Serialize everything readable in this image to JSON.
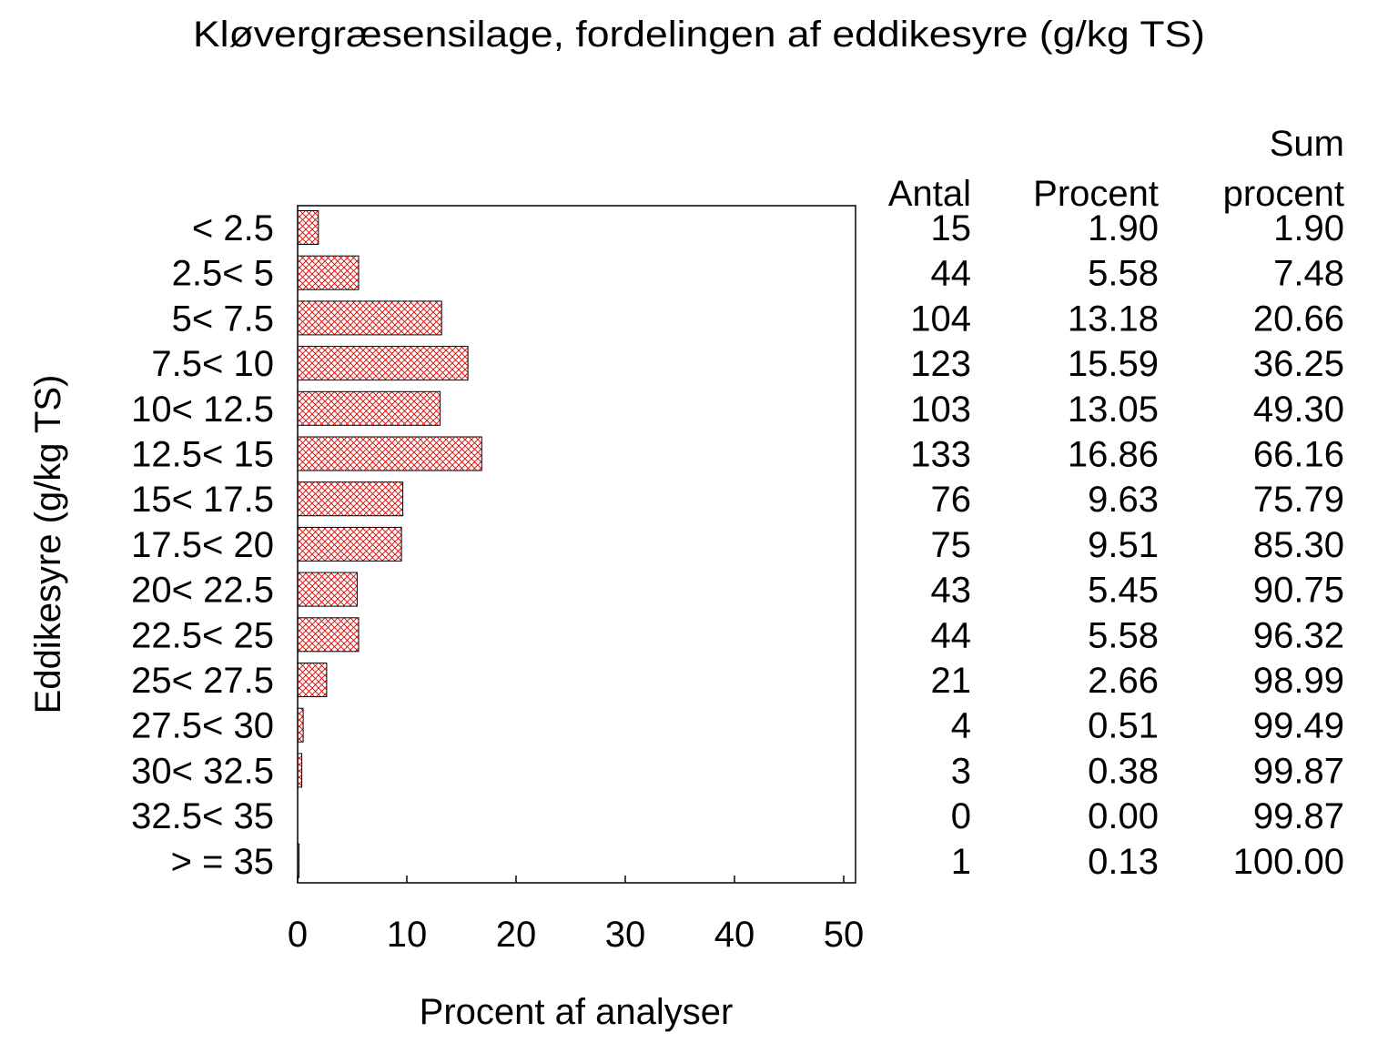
{
  "chart_data": {
    "type": "bar",
    "orientation": "horizontal",
    "title": "Kløvergræsensilage, fordelingen af eddikesyre (g/kg TS)",
    "xlabel": "Procent af analyser",
    "ylabel": "Eddikesyre (g/kg TS)",
    "xlim": [
      0,
      50
    ],
    "xticks": [
      "0",
      "10",
      "20",
      "30",
      "40",
      "50"
    ],
    "grid": false,
    "bar_fill": "crosshatch",
    "bar_color": "#e00000",
    "categories": [
      "< 2.5",
      "2.5< 5",
      "5< 7.5",
      "7.5< 10",
      "10< 12.5",
      "12.5< 15",
      "15< 17.5",
      "17.5< 20",
      "20< 22.5",
      "22.5< 25",
      "25< 27.5",
      "27.5< 30",
      "30< 32.5",
      "32.5< 35",
      "> = 35"
    ],
    "values": [
      1.9,
      5.58,
      13.18,
      15.59,
      13.05,
      16.86,
      9.63,
      9.51,
      5.45,
      5.58,
      2.66,
      0.51,
      0.38,
      0.0,
      0.13
    ],
    "table": {
      "headers": {
        "antal": "Antal",
        "procent": "Procent",
        "sum_line1": "Sum",
        "sum_line2": "procent"
      },
      "antal": [
        "15",
        "44",
        "104",
        "123",
        "103",
        "133",
        "76",
        "75",
        "43",
        "44",
        "21",
        "4",
        "3",
        "0",
        "1"
      ],
      "procent": [
        "1.90",
        "5.58",
        "13.18",
        "15.59",
        "13.05",
        "16.86",
        "9.63",
        "9.51",
        "5.45",
        "5.58",
        "2.66",
        "0.51",
        "0.38",
        "0.00",
        "0.13"
      ],
      "sum_procent": [
        "1.90",
        "7.48",
        "20.66",
        "36.25",
        "49.30",
        "66.16",
        "75.79",
        "85.30",
        "90.75",
        "96.32",
        "98.99",
        "99.49",
        "99.87",
        "99.87",
        "100.00"
      ]
    }
  }
}
